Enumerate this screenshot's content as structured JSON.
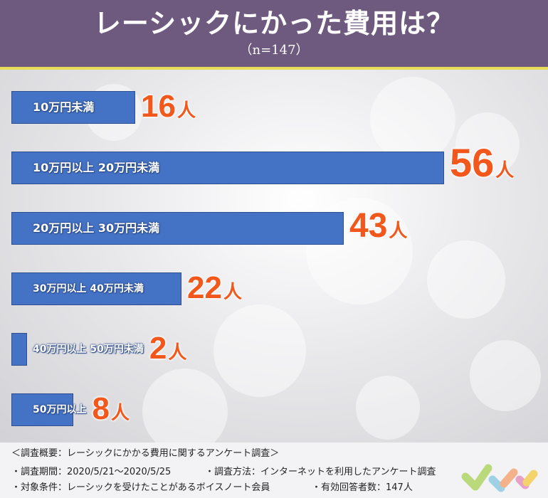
{
  "header": {
    "title": "レーシックにかった費用は？",
    "subtitle": "（n=147）"
  },
  "chart_data": {
    "type": "bar",
    "orientation": "horizontal",
    "title": "レーシックにかった費用は？",
    "subtitle": "（n=147）",
    "categories": [
      "10万円未満",
      "10万円以上 20万円未満",
      "20万円以上 30万円未満",
      "30万円以上 40万円未満",
      "40万円以上 50万円未満",
      "50万円以上"
    ],
    "values": [
      16,
      56,
      43,
      22,
      2,
      8
    ],
    "value_labels": [
      "16",
      "56",
      "43",
      "22",
      "2",
      "8"
    ],
    "unit": "人",
    "colors": {
      "bar": "#4472c4",
      "value_text": "#f2571b",
      "header_bg": "#6e5a7e",
      "header_rule": "#e8dc5a"
    }
  },
  "footer": {
    "heading": "＜調査概要：レーシックにかかる費用に関するアンケート調査＞",
    "period": "・調査期間：2020/5/21〜2020/5/25",
    "method": "・調査方法：インターネットを利用したアンケート調査",
    "target": "・対象条件：レーシックを受けたことがあるボイスノート会員",
    "respondents": "・有効回答者数：147人",
    "logo_icon": "voicenote-logo-icon"
  }
}
